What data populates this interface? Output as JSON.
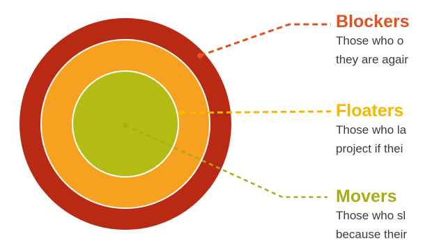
{
  "diagram": {
    "rings": [
      {
        "id": "blockers",
        "color": "#b92a14"
      },
      {
        "id": "floaters",
        "color": "#f6a11f"
      },
      {
        "id": "movers",
        "color": "#b3bc12"
      }
    ],
    "ring_border_color": "#ffffff",
    "categories": [
      {
        "id": "blockers",
        "title": "Blockers",
        "color": "#e0521f",
        "line_color": "#e0521f",
        "lines": [
          "Those who o",
          "they are agair"
        ]
      },
      {
        "id": "floaters",
        "title": "Floaters",
        "color": "#f5b800",
        "line_color": "#f5b800",
        "lines": [
          "Those who la",
          "project if thei"
        ]
      },
      {
        "id": "movers",
        "title": "Movers",
        "color": "#a9ad14",
        "line_color": "#a9ad14",
        "lines": [
          "Those who sl",
          "because their"
        ]
      }
    ]
  }
}
